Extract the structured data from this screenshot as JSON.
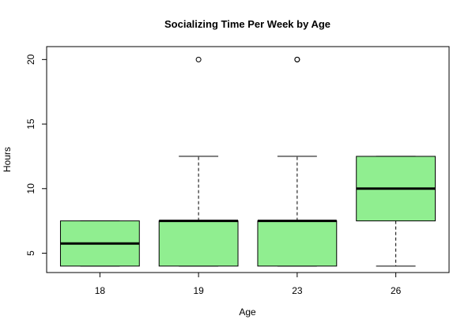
{
  "chart_data": {
    "type": "boxplot",
    "title": "Socializing Time Per Week by Age",
    "xlabel": "Age",
    "ylabel": "Hours",
    "ylim": [
      3.5,
      21.0
    ],
    "yticks": [
      5,
      10,
      15,
      20
    ],
    "box_color": "#90EE90",
    "categories": [
      "18",
      "19",
      "23",
      "26"
    ],
    "boxes": [
      {
        "category": "18",
        "whisker_low": 4,
        "q1": 4,
        "median": 5.75,
        "q3": 7.5,
        "whisker_high": 7.5,
        "outliers": []
      },
      {
        "category": "19",
        "whisker_low": 4,
        "q1": 4,
        "median": 7.5,
        "q3": 7.5,
        "whisker_high": 12.5,
        "outliers": [
          20
        ]
      },
      {
        "category": "23",
        "whisker_low": 4,
        "q1": 4,
        "median": 7.5,
        "q3": 7.5,
        "whisker_high": 12.5,
        "outliers": [
          20,
          20
        ]
      },
      {
        "category": "26",
        "whisker_low": 4,
        "q1": 7.5,
        "median": 10,
        "q3": 12.5,
        "whisker_high": 12.5,
        "outliers": []
      }
    ]
  }
}
